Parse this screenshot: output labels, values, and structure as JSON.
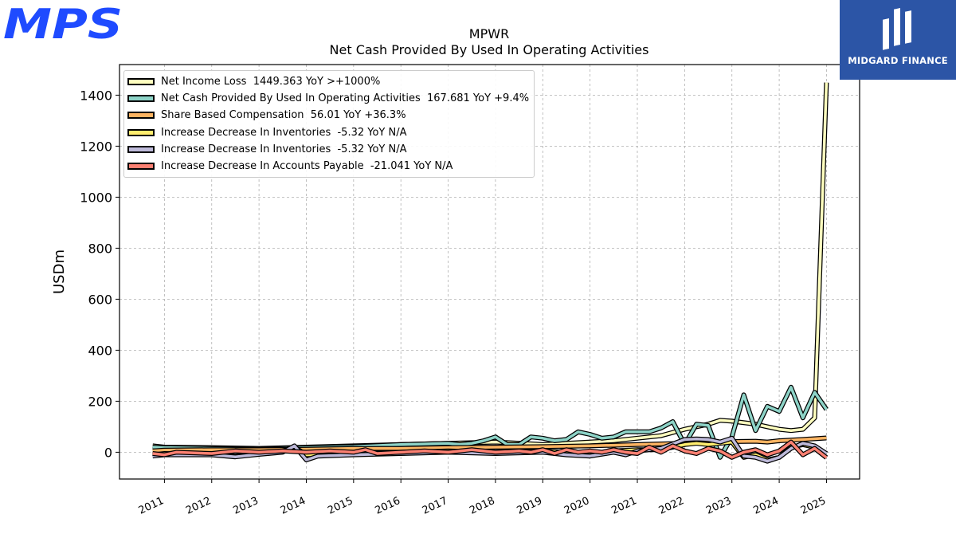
{
  "brand": {
    "logo_text": "MPS",
    "logo_color": "#1f4bff"
  },
  "partner": {
    "name": "MIDGARD FINANCE",
    "background": "#2c55a6"
  },
  "chart_data": {
    "type": "line",
    "title": "MPWR",
    "subtitle": "Net Cash Provided By Used In Operating Activities",
    "ylabel": "USDm",
    "xlabel": "",
    "ylim": [
      -105,
      1520
    ],
    "xlim": [
      2010.05,
      2025.7
    ],
    "yticks": [
      0,
      200,
      400,
      600,
      800,
      1000,
      1200,
      1400
    ],
    "xticks": [
      2011,
      2012,
      2013,
      2014,
      2015,
      2016,
      2017,
      2018,
      2019,
      2020,
      2021,
      2022,
      2023,
      2024,
      2025
    ],
    "grid": true,
    "legend_position": "top-left",
    "series": [
      {
        "name": "Net Income Loss  1449.363 YoY >+1000%",
        "color": "#ffffbf",
        "points": [
          [
            2010.75,
            25
          ],
          [
            2011.0,
            20
          ],
          [
            2012.0,
            18
          ],
          [
            2013.0,
            15
          ],
          [
            2014.0,
            20
          ],
          [
            2015.0,
            25
          ],
          [
            2016.0,
            30
          ],
          [
            2017.0,
            35
          ],
          [
            2018.0,
            40
          ],
          [
            2019.0,
            30
          ],
          [
            2019.5,
            35
          ],
          [
            2020.0,
            40
          ],
          [
            2020.5,
            45
          ],
          [
            2021.0,
            55
          ],
          [
            2021.5,
            65
          ],
          [
            2022.0,
            90
          ],
          [
            2022.25,
            100
          ],
          [
            2022.5,
            110
          ],
          [
            2022.75,
            125
          ],
          [
            2023.0,
            122
          ],
          [
            2023.5,
            110
          ],
          [
            2023.75,
            100
          ],
          [
            2024.0,
            90
          ],
          [
            2024.25,
            85
          ],
          [
            2024.5,
            90
          ],
          [
            2024.75,
            135
          ],
          [
            2025.0,
            1449.363
          ]
        ]
      },
      {
        "name": "Net Cash Provided By Used In Operating Activities  167.681 YoY +9.4%",
        "color": "#8dd3c7",
        "points": [
          [
            2010.75,
            20
          ],
          [
            2011.0,
            18
          ],
          [
            2012.0,
            15
          ],
          [
            2013.0,
            12
          ],
          [
            2014.0,
            18
          ],
          [
            2015.0,
            22
          ],
          [
            2016.0,
            30
          ],
          [
            2017.0,
            35
          ],
          [
            2017.25,
            30
          ],
          [
            2017.5,
            35
          ],
          [
            2017.75,
            45
          ],
          [
            2018.0,
            60
          ],
          [
            2018.25,
            30
          ],
          [
            2018.5,
            30
          ],
          [
            2018.75,
            60
          ],
          [
            2019.0,
            55
          ],
          [
            2019.25,
            45
          ],
          [
            2019.5,
            50
          ],
          [
            2019.75,
            80
          ],
          [
            2020.0,
            70
          ],
          [
            2020.25,
            55
          ],
          [
            2020.5,
            60
          ],
          [
            2020.75,
            80
          ],
          [
            2021.0,
            80
          ],
          [
            2021.25,
            80
          ],
          [
            2021.5,
            95
          ],
          [
            2021.75,
            120
          ],
          [
            2022.0,
            30
          ],
          [
            2022.25,
            110
          ],
          [
            2022.5,
            105
          ],
          [
            2022.75,
            -20
          ],
          [
            2023.0,
            60
          ],
          [
            2023.25,
            225
          ],
          [
            2023.5,
            85
          ],
          [
            2023.75,
            180
          ],
          [
            2024.0,
            160
          ],
          [
            2024.25,
            255
          ],
          [
            2024.5,
            135
          ],
          [
            2024.75,
            235
          ],
          [
            2025.0,
            167.681
          ]
        ]
      },
      {
        "name": "Share Based Compensation  56.01 YoY +36.3%",
        "color": "#fdb462",
        "points": [
          [
            2010.75,
            5
          ],
          [
            2011.0,
            8
          ],
          [
            2012.0,
            10
          ],
          [
            2013.0,
            10
          ],
          [
            2014.0,
            12
          ],
          [
            2015.0,
            15
          ],
          [
            2016.0,
            15
          ],
          [
            2017.0,
            18
          ],
          [
            2018.0,
            20
          ],
          [
            2019.0,
            22
          ],
          [
            2020.0,
            25
          ],
          [
            2021.0,
            30
          ],
          [
            2022.0,
            35
          ],
          [
            2022.5,
            38
          ],
          [
            2023.0,
            42
          ],
          [
            2023.5,
            43
          ],
          [
            2023.75,
            40
          ],
          [
            2024.0,
            45
          ],
          [
            2024.5,
            50
          ],
          [
            2025.0,
            56.01
          ]
        ]
      },
      {
        "name": "Increase Decrease In Inventories  -5.32 YoY N/A",
        "color": "#ffed6f",
        "points": [
          [
            2010.75,
            -10
          ],
          [
            2011.0,
            -5
          ],
          [
            2012.0,
            -8
          ],
          [
            2012.5,
            -15
          ],
          [
            2013.0,
            -5
          ],
          [
            2013.5,
            5
          ],
          [
            2013.75,
            20
          ],
          [
            2014.0,
            -10
          ],
          [
            2015.0,
            -5
          ],
          [
            2016.0,
            0
          ],
          [
            2017.0,
            5
          ],
          [
            2018.0,
            0
          ],
          [
            2019.0,
            5
          ],
          [
            2019.5,
            0
          ],
          [
            2020.0,
            -10
          ],
          [
            2020.5,
            5
          ],
          [
            2021.0,
            10
          ],
          [
            2021.5,
            10
          ],
          [
            2022.0,
            30
          ],
          [
            2022.25,
            35
          ],
          [
            2022.5,
            30
          ],
          [
            2022.75,
            35
          ],
          [
            2023.0,
            40
          ],
          [
            2023.25,
            -20
          ],
          [
            2023.5,
            -10
          ],
          [
            2023.75,
            -30
          ],
          [
            2024.0,
            -20
          ],
          [
            2024.25,
            20
          ],
          [
            2024.5,
            30
          ],
          [
            2024.75,
            20
          ],
          [
            2025.0,
            -5.32
          ]
        ]
      },
      {
        "name": "Increase Decrease In Inventories  -5.32 YoY N/A",
        "color": "#bebada",
        "points": [
          [
            2010.75,
            -15
          ],
          [
            2011.0,
            -10
          ],
          [
            2012.0,
            -10
          ],
          [
            2012.5,
            -18
          ],
          [
            2013.0,
            -8
          ],
          [
            2013.5,
            0
          ],
          [
            2013.75,
            25
          ],
          [
            2014.0,
            -30
          ],
          [
            2014.25,
            -15
          ],
          [
            2015.0,
            -10
          ],
          [
            2016.0,
            -5
          ],
          [
            2017.0,
            0
          ],
          [
            2018.0,
            -5
          ],
          [
            2019.0,
            0
          ],
          [
            2019.5,
            -10
          ],
          [
            2020.0,
            -15
          ],
          [
            2020.5,
            0
          ],
          [
            2020.75,
            -10
          ],
          [
            2021.0,
            5
          ],
          [
            2021.5,
            15
          ],
          [
            2022.0,
            50
          ],
          [
            2022.25,
            52
          ],
          [
            2022.5,
            50
          ],
          [
            2022.75,
            40
          ],
          [
            2023.0,
            55
          ],
          [
            2023.25,
            -15
          ],
          [
            2023.5,
            -20
          ],
          [
            2023.75,
            -35
          ],
          [
            2024.0,
            -20
          ],
          [
            2024.25,
            15
          ],
          [
            2024.5,
            35
          ],
          [
            2024.75,
            25
          ],
          [
            2025.0,
            -5.32
          ]
        ]
      },
      {
        "name": "Increase Decrease In Accounts Payable  -21.041 YoY N/A",
        "color": "#fb8072",
        "points": [
          [
            2010.75,
            -5
          ],
          [
            2011.0,
            -10
          ],
          [
            2011.25,
            0
          ],
          [
            2012.0,
            -5
          ],
          [
            2012.5,
            5
          ],
          [
            2013.0,
            0
          ],
          [
            2013.5,
            5
          ],
          [
            2014.0,
            0
          ],
          [
            2014.5,
            5
          ],
          [
            2015.0,
            0
          ],
          [
            2015.25,
            10
          ],
          [
            2015.5,
            -5
          ],
          [
            2016.0,
            0
          ],
          [
            2016.5,
            5
          ],
          [
            2017.0,
            0
          ],
          [
            2017.5,
            10
          ],
          [
            2018.0,
            0
          ],
          [
            2018.5,
            5
          ],
          [
            2018.75,
            0
          ],
          [
            2019.0,
            10
          ],
          [
            2019.25,
            -5
          ],
          [
            2019.5,
            10
          ],
          [
            2019.75,
            0
          ],
          [
            2020.0,
            5
          ],
          [
            2020.25,
            0
          ],
          [
            2020.5,
            10
          ],
          [
            2020.75,
            0
          ],
          [
            2021.0,
            -5
          ],
          [
            2021.25,
            20
          ],
          [
            2021.5,
            0
          ],
          [
            2021.75,
            25
          ],
          [
            2022.0,
            5
          ],
          [
            2022.25,
            -5
          ],
          [
            2022.5,
            15
          ],
          [
            2022.75,
            5
          ],
          [
            2023.0,
            -20
          ],
          [
            2023.25,
            0
          ],
          [
            2023.5,
            10
          ],
          [
            2023.75,
            -10
          ],
          [
            2024.0,
            5
          ],
          [
            2024.25,
            40
          ],
          [
            2024.5,
            -10
          ],
          [
            2024.75,
            15
          ],
          [
            2025.0,
            -21.041
          ]
        ]
      }
    ]
  }
}
